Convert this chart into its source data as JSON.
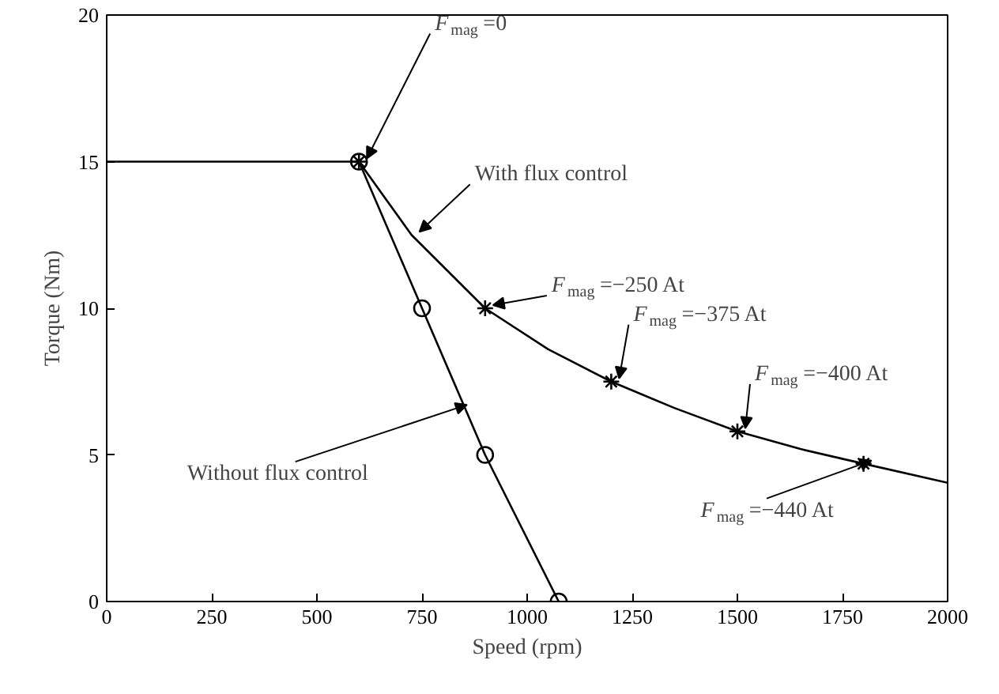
{
  "chart_data": {
    "type": "line",
    "xlabel": "Speed (rpm)",
    "ylabel": "Torque (Nm)",
    "xlim": [
      0,
      2000
    ],
    "xticks": [
      0,
      250,
      500,
      750,
      1000,
      1250,
      1500,
      1750,
      2000
    ],
    "ylim": [
      0,
      20
    ],
    "yticks": [
      0,
      5,
      10,
      15,
      20
    ],
    "grid": false,
    "series": [
      {
        "color": "#000000",
        "marker": "none",
        "x": [
          0,
          600,
          725,
          900,
          1050,
          1200,
          1350,
          1500,
          1650,
          1800,
          2000
        ],
        "values": [
          15,
          15,
          12.5,
          10,
          8.6,
          7.5,
          6.6,
          5.8,
          5.2,
          4.7,
          4.05
        ]
      },
      {
        "type": "scatter",
        "color": "#000000",
        "marker": "cross",
        "x": [
          600,
          900,
          1200,
          1500,
          1800
        ],
        "values": [
          15,
          10,
          7.5,
          5.8,
          4.7
        ]
      },
      {
        "color": "#000000",
        "marker": "circle",
        "x": [
          600,
          750,
          900,
          1075
        ],
        "values": [
          15,
          10,
          5,
          0
        ]
      }
    ],
    "annotations": [
      {
        "text": "F$_{mag}$=0",
        "x": 600,
        "y": 15
      },
      {
        "text": "With flux control",
        "x": 725,
        "y": 12.5
      },
      {
        "text": "F$_{mag}$=−250 At",
        "x": 900,
        "y": 10
      },
      {
        "text": "F$_{mag}$=−375 At",
        "x": 1200,
        "y": 7.5
      },
      {
        "text": "F$_{mag}$=−400 At",
        "x": 1500,
        "y": 5.8
      },
      {
        "text": "F$_{mag}$=−440 At",
        "x": 1800,
        "y": 4.7
      },
      {
        "text": "Without flux control",
        "x": 838,
        "y": 6.6
      }
    ]
  }
}
